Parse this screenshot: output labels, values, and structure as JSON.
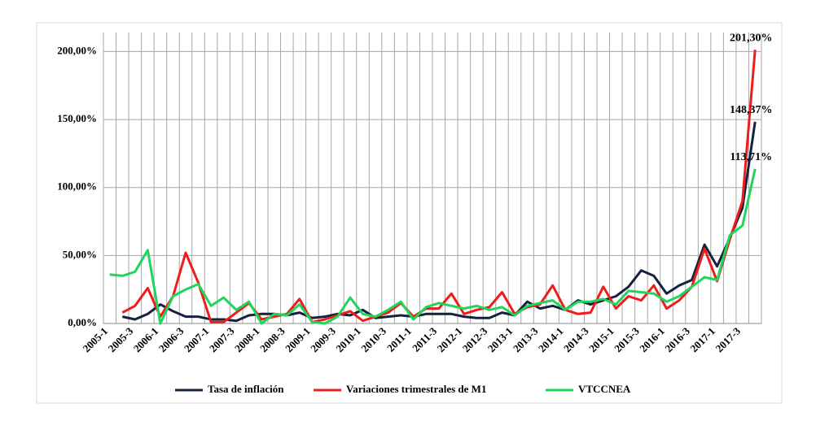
{
  "chart_data": {
    "type": "line",
    "categories": [
      "2005-1",
      null,
      "2005-3",
      null,
      "2006-1",
      null,
      "2006-3",
      null,
      "2007-1",
      null,
      "2007-3",
      null,
      "2008-1",
      null,
      "2008-3",
      null,
      "2009-1",
      null,
      "2009-3",
      null,
      "2010-1",
      null,
      "2010-3",
      null,
      "2011-1",
      null,
      "2011-3",
      null,
      "2012-1",
      null,
      "2012-3",
      null,
      "2013-1",
      null,
      "2013-3",
      null,
      "2014-1",
      null,
      "2014-3",
      null,
      "2015-1",
      null,
      "2015-3",
      null,
      "2016-1",
      null,
      "2016-3",
      null,
      "2017-1",
      null,
      "2017-3",
      null
    ],
    "series": [
      {
        "name": "Tasa de inflación",
        "color": "#16213f",
        "values": [
          null,
          5,
          3,
          7,
          14,
          9,
          5,
          5,
          3,
          3,
          2,
          6,
          7,
          7,
          6,
          8,
          4,
          5,
          7,
          6,
          10,
          4,
          5,
          6,
          5,
          7,
          7,
          7,
          5,
          4,
          4,
          8,
          6,
          16,
          11,
          13,
          10,
          17,
          14,
          17,
          20,
          27,
          39,
          35,
          22,
          28,
          32,
          58,
          42,
          63,
          85,
          148.37
        ],
        "value_labels": [
          null,
          null,
          null,
          null,
          null,
          null,
          null,
          null,
          null,
          null,
          null,
          null,
          null,
          null,
          null,
          null,
          null,
          null,
          null,
          null,
          null,
          null,
          null,
          null,
          null,
          null,
          null,
          null,
          null,
          null,
          null,
          null,
          null,
          null,
          null,
          null,
          null,
          null,
          null,
          null,
          null,
          null,
          null,
          null,
          null,
          null,
          null,
          null,
          null,
          null,
          null,
          "148,37%"
        ]
      },
      {
        "name": "Variaciones trimestrales de M1",
        "color": "#ee1c1c",
        "values": [
          null,
          8,
          13,
          26,
          5,
          20,
          52,
          30,
          1,
          1,
          8,
          15,
          3,
          5,
          7,
          18,
          1,
          3,
          6,
          9,
          2,
          5,
          8,
          15,
          5,
          11,
          11,
          22,
          7,
          10,
          12,
          23,
          7,
          12,
          14,
          28,
          10,
          7,
          8,
          27,
          11,
          20,
          17,
          28,
          11,
          17,
          27,
          55,
          31,
          62,
          90,
          201.3
        ],
        "value_labels": [
          null,
          null,
          null,
          null,
          null,
          null,
          null,
          null,
          null,
          null,
          null,
          null,
          null,
          null,
          null,
          null,
          null,
          null,
          null,
          null,
          null,
          null,
          null,
          null,
          null,
          null,
          null,
          null,
          null,
          null,
          null,
          null,
          null,
          null,
          null,
          null,
          null,
          null,
          null,
          null,
          null,
          null,
          null,
          null,
          null,
          null,
          null,
          null,
          null,
          null,
          null,
          "201,30%"
        ]
      },
      {
        "name": "VTCCNEA",
        "color": "#1fd55a",
        "values": [
          36,
          35,
          38,
          54,
          0,
          20,
          25,
          29,
          13,
          19,
          10,
          16,
          0,
          7,
          6,
          14,
          1,
          0,
          5,
          19,
          7,
          5,
          10,
          16,
          3,
          12,
          15,
          13,
          11,
          13,
          10,
          12,
          6,
          13,
          15,
          17,
          10,
          16,
          16,
          18,
          14,
          24,
          23,
          22,
          16,
          20,
          27,
          34,
          32,
          65,
          72,
          113.71
        ],
        "value_labels": [
          null,
          null,
          null,
          null,
          null,
          null,
          null,
          null,
          null,
          null,
          null,
          null,
          null,
          null,
          null,
          null,
          null,
          null,
          null,
          null,
          null,
          null,
          null,
          null,
          null,
          null,
          null,
          null,
          null,
          null,
          null,
          null,
          null,
          null,
          null,
          null,
          null,
          null,
          null,
          null,
          null,
          null,
          null,
          null,
          null,
          null,
          null,
          null,
          null,
          null,
          null,
          "113,71%"
        ]
      }
    ],
    "ylim": [
      0,
      214
    ],
    "yticks": [
      {
        "value": 0,
        "label": "0,00%"
      },
      {
        "value": 50,
        "label": "50,00%"
      },
      {
        "value": 100,
        "label": "100,00%"
      },
      {
        "value": 150,
        "label": "150,00%"
      },
      {
        "value": 200,
        "label": "200,00%"
      }
    ],
    "grid": true,
    "legend": "bottom"
  }
}
